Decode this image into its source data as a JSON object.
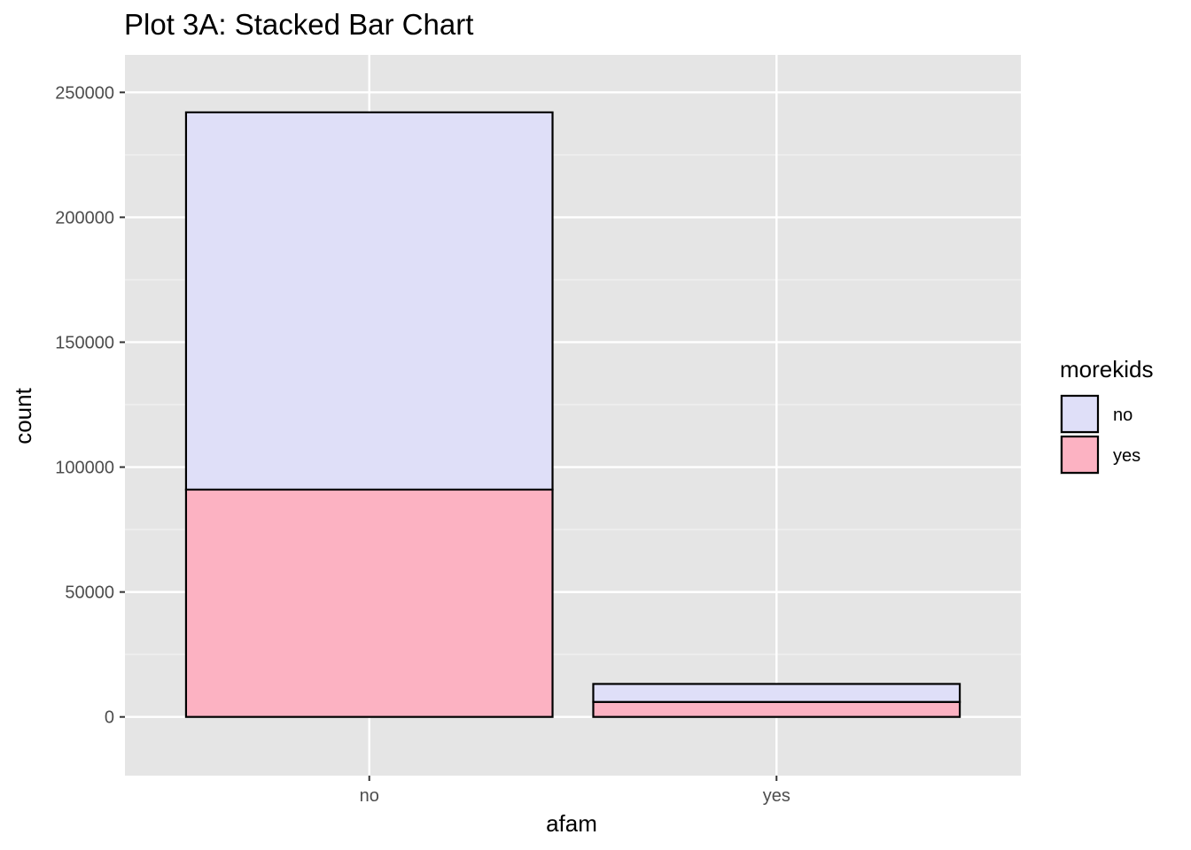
{
  "chart_data": {
    "type": "bar",
    "stacked": true,
    "title": "Plot 3A: Stacked Bar Chart",
    "xlabel": "afam",
    "ylabel": "count",
    "categories": [
      "no",
      "yes"
    ],
    "series": [
      {
        "name": "no",
        "values": [
          151000,
          7200
        ],
        "color": "#dfdff8"
      },
      {
        "name": "yes",
        "values": [
          91000,
          6000
        ],
        "color": "#fcb2c2"
      }
    ],
    "ylim": [
      -23500,
      265000
    ],
    "yticks": [
      0,
      50000,
      100000,
      150000,
      200000,
      250000
    ],
    "ytick_labels": [
      "0",
      "50000",
      "100000",
      "150000",
      "200000",
      "250000"
    ],
    "grid": true,
    "legend": {
      "title": "morekids",
      "position": "right"
    },
    "panel_background": "#e5e5e5",
    "bar_outline": "#000000"
  }
}
